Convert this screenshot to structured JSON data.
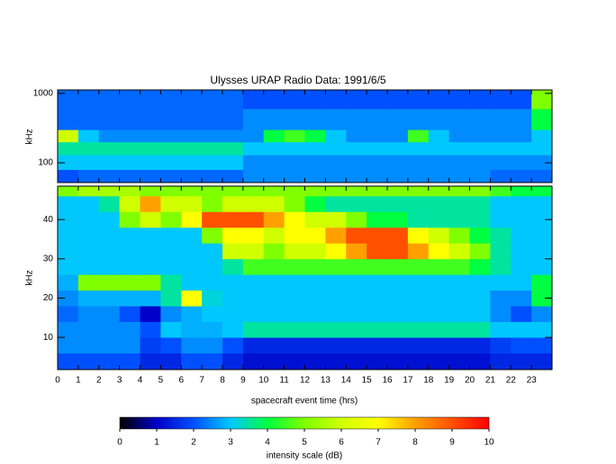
{
  "chart_data": [
    {
      "type": "heatmap",
      "title": "Ulysses URAP Radio Data: 1991/6/5",
      "ylabel": "kHz",
      "log_y": true,
      "xlim": [
        0,
        24
      ],
      "xticks": [
        0,
        1,
        2,
        3,
        4,
        5,
        6,
        7,
        8,
        9,
        10,
        11,
        12,
        13,
        14,
        15,
        16,
        17,
        18,
        19,
        20,
        21,
        22,
        23
      ],
      "ylim": [
        52,
        1120
      ],
      "yticks": [
        100,
        1000
      ],
      "x_bins": [
        0,
        1,
        2,
        3,
        4,
        5,
        6,
        7,
        8,
        9,
        10,
        11,
        12,
        13,
        14,
        15,
        16,
        17,
        18,
        19,
        20,
        21,
        22,
        23,
        24
      ],
      "y_bins": [
        52,
        80,
        130,
        200,
        300,
        600,
        1120
      ],
      "values": [
        [
          2,
          2.2,
          2.2,
          2.2,
          2.2,
          2.2,
          2.2,
          2.2,
          2.2,
          2.5,
          2.5,
          2.5,
          2.5,
          2.5,
          2.5,
          2.5,
          2.5,
          2.5,
          2.5,
          2.5,
          2.5,
          2.2,
          2.2,
          2.2
        ],
        [
          3,
          3,
          3,
          3,
          3,
          3,
          3,
          3,
          3,
          2.5,
          2.5,
          2.5,
          2.5,
          2.5,
          2.5,
          2.5,
          2.5,
          2.5,
          2.5,
          2.5,
          2.5,
          2.5,
          2.5,
          2.5
        ],
        [
          3.5,
          3.5,
          3.5,
          3.5,
          3.5,
          3.5,
          3.5,
          3.5,
          3.5,
          3,
          3,
          3,
          3,
          3,
          3,
          3,
          3,
          3,
          3,
          3,
          3,
          3,
          3,
          3
        ],
        [
          6,
          3,
          2.5,
          2.5,
          2.5,
          2.5,
          2.5,
          2.5,
          2.5,
          2.5,
          4,
          4.5,
          4,
          3,
          2.5,
          2.5,
          2.5,
          4.5,
          3,
          2.5,
          2.5,
          2.5,
          2.5,
          3
        ],
        [
          2.2,
          2.2,
          2.2,
          2.2,
          2.2,
          2.2,
          2.2,
          2.2,
          2.2,
          2.5,
          2.5,
          2.5,
          2.5,
          2.5,
          2.5,
          2.5,
          2.5,
          2.5,
          2.5,
          2.5,
          2.5,
          2.5,
          2.5,
          4
        ],
        [
          2.2,
          2.2,
          2.2,
          2.2,
          2.2,
          2.2,
          2.2,
          2.2,
          2.2,
          2,
          2,
          2,
          2,
          2,
          2,
          2,
          2,
          2,
          2,
          2,
          2,
          2,
          2,
          5
        ]
      ]
    },
    {
      "type": "heatmap",
      "ylabel": "kHz",
      "xlabel": "spacecraft event time (hrs)",
      "log_y": false,
      "xlim": [
        0,
        24
      ],
      "xticks": [
        0,
        1,
        2,
        3,
        4,
        5,
        6,
        7,
        8,
        9,
        10,
        11,
        12,
        13,
        14,
        15,
        16,
        17,
        18,
        19,
        20,
        21,
        22,
        23
      ],
      "ylim": [
        1.8,
        48.5
      ],
      "yticks": [
        10,
        20,
        30,
        40
      ],
      "x_bins": [
        0,
        1,
        2,
        3,
        4,
        5,
        6,
        7,
        8,
        9,
        10,
        11,
        12,
        13,
        14,
        15,
        16,
        17,
        18,
        19,
        20,
        21,
        22,
        23,
        24
      ],
      "y_bins": [
        1.8,
        6,
        10,
        14,
        18,
        22,
        26,
        30,
        34,
        38,
        42,
        46,
        48.5
      ],
      "values": [
        [
          2,
          2,
          2,
          2,
          1.5,
          1.5,
          2,
          2,
          1.5,
          1.2,
          1.2,
          1.2,
          1.2,
          1.2,
          1.2,
          1.2,
          1.2,
          1.2,
          1.2,
          1.2,
          1.2,
          1.5,
          1.5,
          1.5
        ],
        [
          2.5,
          2.5,
          2.5,
          2.5,
          1.8,
          2,
          2.5,
          2.5,
          2,
          1.5,
          1.5,
          1.5,
          1.5,
          1.5,
          1.5,
          1.5,
          1.5,
          1.5,
          1.5,
          1.5,
          1.5,
          1.8,
          2,
          2
        ],
        [
          2.5,
          2.5,
          2.5,
          2.5,
          2,
          3,
          2.8,
          2.8,
          3,
          3.5,
          3.5,
          3.5,
          3.5,
          3.5,
          3.5,
          3.5,
          3.5,
          3.5,
          3.5,
          3.5,
          3.5,
          3,
          3,
          3
        ],
        [
          2.2,
          2.5,
          2.5,
          2,
          1,
          2.5,
          2.8,
          3,
          3,
          3,
          3,
          3,
          3,
          3,
          3,
          3,
          3,
          3,
          3,
          3,
          3,
          2.5,
          2,
          2.5
        ],
        [
          2.5,
          2.8,
          2.8,
          2.8,
          2.8,
          3.5,
          7,
          3.2,
          3,
          3,
          3,
          3,
          3,
          3,
          3,
          3,
          3,
          3,
          3,
          3,
          3,
          2.5,
          2.5,
          4
        ],
        [
          2.8,
          5,
          5,
          5,
          5,
          3.5,
          3,
          3,
          3,
          3,
          3,
          3,
          3,
          3,
          3,
          3,
          3,
          3,
          3,
          3,
          3,
          3,
          3,
          4
        ],
        [
          3,
          3,
          3,
          3,
          3,
          3,
          3,
          3,
          3.5,
          4.5,
          4.5,
          4.5,
          4.5,
          4.5,
          4.5,
          4.5,
          4.5,
          4.5,
          4.5,
          4.5,
          4,
          3.5,
          3,
          3
        ],
        [
          3,
          3,
          3,
          3,
          3,
          3,
          3,
          3,
          6,
          6,
          5,
          6,
          6,
          7,
          8,
          9,
          9,
          8,
          7,
          6,
          5,
          3.5,
          3,
          3
        ],
        [
          3,
          3,
          3,
          3,
          3,
          3,
          3,
          5,
          7,
          7,
          6,
          7,
          7,
          8,
          9,
          9,
          9,
          7,
          6,
          5,
          4,
          3.5,
          3,
          3
        ],
        [
          3,
          3,
          3,
          5,
          6,
          5,
          7,
          9,
          9,
          9,
          8,
          7,
          6,
          6,
          5,
          4,
          4,
          3.5,
          3.5,
          3.5,
          3.5,
          3,
          3,
          3
        ],
        [
          3,
          3,
          3.5,
          6,
          8,
          6,
          6,
          5,
          6,
          6,
          6,
          5,
          4,
          3.5,
          3.5,
          3.5,
          3.5,
          3.5,
          3.5,
          3.5,
          3.5,
          3,
          3,
          3
        ],
        [
          5,
          5.5,
          5.5,
          5.5,
          5,
          5,
          5,
          5,
          5,
          5,
          5,
          5,
          5,
          5,
          5,
          5,
          5,
          5,
          5,
          5,
          5,
          4.5,
          4,
          4
        ]
      ]
    },
    {
      "type": "colorbar",
      "xlabel": "intensity scale (dB)",
      "xlim": [
        0,
        10
      ],
      "xticks": [
        0,
        1,
        2,
        3,
        4,
        5,
        6,
        7,
        8,
        9,
        10
      ],
      "colormap": [
        "#000000",
        "#0000c8",
        "#0050ff",
        "#00c8ff",
        "#00ff40",
        "#80ff00",
        "#d0ff00",
        "#ffff00",
        "#ffa000",
        "#ff5000",
        "#ff0000"
      ]
    }
  ]
}
